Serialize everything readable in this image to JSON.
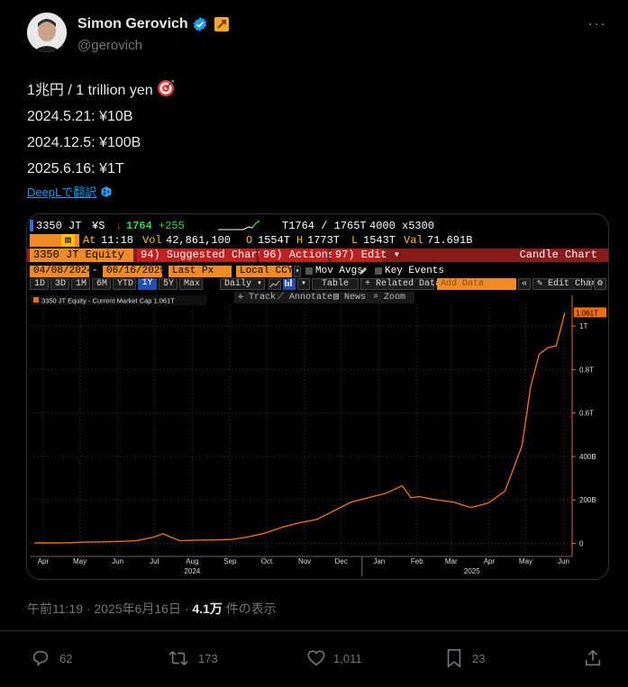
{
  "tweet": {
    "author_name": "Simon Gerovich",
    "handle": "@gerovich",
    "more": "···",
    "lines": [
      "1兆円 / 1 trillion yen",
      "2024.5.21: ¥10B",
      "2024.12.5: ¥100B",
      "2025.6.16: ¥1T"
    ],
    "translate_label": "DeepLで翻訳",
    "timestamp": "午前11:19 · 2025年6月16日 · ",
    "views_count": "4.1万",
    "views_label": " 件の表示"
  },
  "actions": {
    "replies": "62",
    "retweets": "173",
    "likes": "1,011",
    "bookmarks": "23"
  },
  "terminal": {
    "ticker": "3350 JT",
    "currency": "¥S",
    "last": "1764",
    "change": "+255",
    "range_quote": "T1764 / 1765T",
    "size": "4000 x5300",
    "at_label": "At",
    "at_time": "11:18",
    "vol_label": "Vol",
    "vol": "42,861,100",
    "open_label": "O",
    "open": "1554T",
    "high_label": "H",
    "high": "1773T",
    "low_label": "L",
    "low": "1543T",
    "val_label": "Val",
    "val": "71.691B",
    "security": "3350 JT Equity",
    "menu_suggested": "94) Suggested Charts ▾",
    "menu_actions": "96) Actions ▾",
    "menu_edit": "97) Edit ▾",
    "candle_chart": "Candle Chart",
    "start_date": "04/08/2024",
    "end_date": "06/16/2025",
    "last_px": "Last Px",
    "local_ccy": "Local CCY",
    "mov_avgs": "Mov Avgs",
    "key_events": "Key Events",
    "periods": [
      "1D",
      "3D",
      "1M",
      "6M",
      "YTD",
      "1Y",
      "5Y",
      "Max"
    ],
    "selected_period": "1Y",
    "freq": "Daily ▾",
    "table": "Table",
    "related_data": "+ Related Data ▾",
    "add_data_placeholder": "Add Data",
    "edit_chart": "Edit Chart",
    "tool_track": "Track",
    "tool_annotate": "Annotate",
    "tool_news": "News",
    "tool_zoom": "Zoom",
    "legend": "3350 JT Equity - Current Market Cap 1.061T",
    "last_value_tag": "1.061T"
  },
  "chart_data": {
    "type": "line",
    "series": [
      {
        "name": "3350 JT Equity - Current Market Cap",
        "x": [
          "2024-04-08",
          "2024-04-22",
          "2024-05-06",
          "2024-05-20",
          "2024-06-03",
          "2024-06-17",
          "2024-07-01",
          "2024-07-15",
          "2024-07-22",
          "2024-07-29",
          "2024-08-05",
          "2024-08-19",
          "2024-09-02",
          "2024-09-16",
          "2024-09-30",
          "2024-10-14",
          "2024-10-28",
          "2024-11-11",
          "2024-11-25",
          "2024-12-09",
          "2024-12-23",
          "2025-01-06",
          "2025-01-20",
          "2025-02-03",
          "2025-02-10",
          "2025-02-17",
          "2025-03-03",
          "2025-03-17",
          "2025-03-31",
          "2025-04-07",
          "2025-04-14",
          "2025-04-28",
          "2025-05-12",
          "2025-05-19",
          "2025-05-26",
          "2025-06-02",
          "2025-06-09",
          "2025-06-16"
        ],
        "values": [
          2,
          2,
          3,
          6,
          7,
          9,
          13,
          30,
          45,
          28,
          12,
          15,
          16,
          18,
          30,
          48,
          75,
          95,
          110,
          150,
          190,
          210,
          230,
          265,
          210,
          215,
          200,
          190,
          165,
          175,
          185,
          240,
          450,
          720,
          870,
          900,
          910,
          1061
        ]
      }
    ],
    "y_ticks": [
      "0",
      "200B",
      "400B",
      "0.6T",
      "0.8T",
      "1T"
    ],
    "y_tick_values": [
      0,
      200,
      400,
      600,
      800,
      1000
    ],
    "ylim": [
      -60,
      1100
    ],
    "x_ticks": [
      "Apr",
      "May",
      "Jun",
      "Jul",
      "Aug",
      "Sep",
      "Oct",
      "Nov",
      "Dec",
      "Jan",
      "Feb",
      "Mar",
      "Apr",
      "May",
      "Jun"
    ],
    "x_tick_dates": [
      "2024-04-15",
      "2024-05-15",
      "2024-06-15",
      "2024-07-15",
      "2024-08-15",
      "2024-09-15",
      "2024-10-15",
      "2024-11-15",
      "2024-12-15",
      "2025-01-15",
      "2025-02-15",
      "2025-03-15",
      "2025-04-15",
      "2025-05-15",
      "2025-06-15"
    ],
    "year_labels": [
      "2024",
      "2025"
    ],
    "year_label_dates": [
      "2024-08-15",
      "2025-04-01"
    ],
    "xlim": [
      "2024-04-04",
      "2025-06-22"
    ],
    "grid": true,
    "line_color": "#f06e0c",
    "legend_position": "top-left"
  }
}
